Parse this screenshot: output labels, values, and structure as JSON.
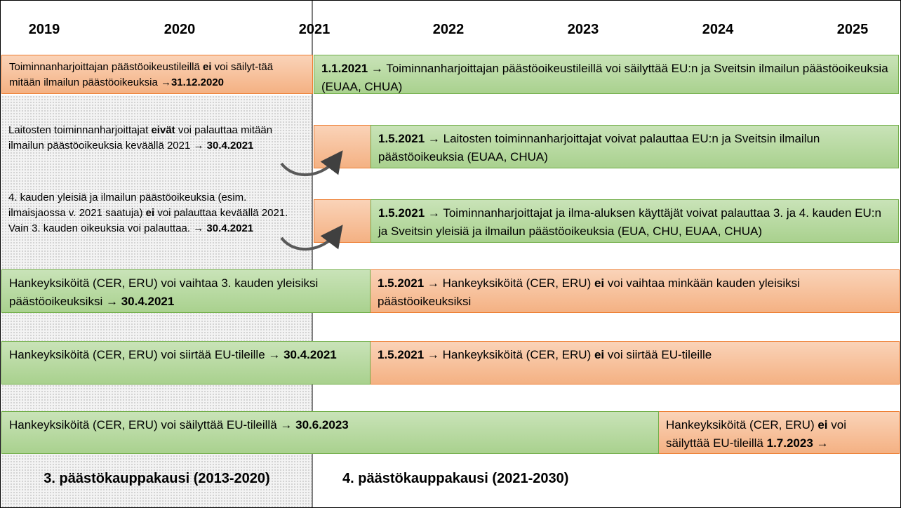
{
  "years": [
    "2019",
    "2020",
    "2021",
    "2022",
    "2023",
    "2024",
    "2025"
  ],
  "rows": [
    {
      "left": [
        {
          "t": "Toiminnanharjoittajan päästöoikeustileillä "
        },
        {
          "t": "ei",
          "b": true
        },
        {
          "t": " voi säilyt-tää mitään ilmailun päästöoikeuksia →"
        },
        {
          "t": "31.12.2020",
          "b": true
        }
      ],
      "right": [
        {
          "t": "1.1.2021",
          "b": true
        },
        {
          "t": " → Toiminnanharjoittajan päästöoikeustileillä voi säilyttää EU:n ja Sveitsin ilmailun päästöoikeuksia (EUAA, CHUA)"
        }
      ]
    },
    {
      "left": [
        {
          "t": "Laitosten toiminnanharjoittajat "
        },
        {
          "t": "eivät",
          "b": true
        },
        {
          "t": " voi palauttaa mitään ilmailun päästöoikeuksia keväällä 2021 → "
        },
        {
          "t": "30.4.2021",
          "b": true
        }
      ],
      "right": [
        {
          "t": "1.5.2021",
          "b": true
        },
        {
          "t": " → Laitosten toiminnanharjoittajat voivat palauttaa EU:n ja Sveitsin ilmailun päästöoikeuksia (EUAA, CHUA)"
        }
      ]
    },
    {
      "left": [
        {
          "t": "4. kauden yleisiä ja ilmailun päästöoikeuksia (esim. ilmaisjaossa v. 2021 saatuja) "
        },
        {
          "t": "ei",
          "b": true
        },
        {
          "t": " voi palauttaa keväällä 2021. Vain 3. kauden oikeuksia voi palauttaa. → "
        },
        {
          "t": "30.4.2021",
          "b": true
        }
      ],
      "right": [
        {
          "t": "1.5.2021",
          "b": true
        },
        {
          "t": " → Toiminnanharjoittajat ja ilma-aluksen käyttäjät voivat palauttaa 3. ja 4. kauden EU:n ja Sveitsin yleisiä ja ilmailun päästöoikeuksia (EUA, CHU, EUAA, CHUA)"
        }
      ]
    },
    {
      "left": [
        {
          "t": "Hankeyksiköitä (CER, ERU) voi vaihtaa 3. kauden yleisiksi päästöoikeuksiksi → "
        },
        {
          "t": "30.4.2021",
          "b": true
        }
      ],
      "right": [
        {
          "t": "1.5.2021",
          "b": true
        },
        {
          "t": " → Hankeyksiköitä (CER, ERU) "
        },
        {
          "t": "ei",
          "b": true
        },
        {
          "t": " voi vaihtaa minkään kauden yleisiksi päästöoikeuksiksi"
        }
      ]
    },
    {
      "left": [
        {
          "t": "Hankeyksiköitä (CER, ERU) voi siirtää EU-tileille → "
        },
        {
          "t": "30.4.2021",
          "b": true
        }
      ],
      "right": [
        {
          "t": "1.5.2021",
          "b": true
        },
        {
          "t": " → Hankeyksiköitä (CER, ERU) "
        },
        {
          "t": "ei",
          "b": true
        },
        {
          "t": " voi siirtää EU-tileille"
        }
      ]
    },
    {
      "left": [
        {
          "t": "Hankeyksiköitä (CER, ERU) voi säilyttää EU-tileillä → "
        },
        {
          "t": "30.6.2023",
          "b": true
        }
      ],
      "right": [
        {
          "t": "Hankeyksiköitä (CER, ERU) "
        },
        {
          "t": "ei",
          "b": true
        },
        {
          "t": " voi säilyttää EU-tileillä "
        },
        {
          "t": "1.7.2023",
          "b": true
        },
        {
          "t": " →"
        }
      ]
    }
  ],
  "periods": [
    "3. päästökauppakausi (2013-2020)",
    "4. päästökauppakausi (2021-2030)"
  ]
}
